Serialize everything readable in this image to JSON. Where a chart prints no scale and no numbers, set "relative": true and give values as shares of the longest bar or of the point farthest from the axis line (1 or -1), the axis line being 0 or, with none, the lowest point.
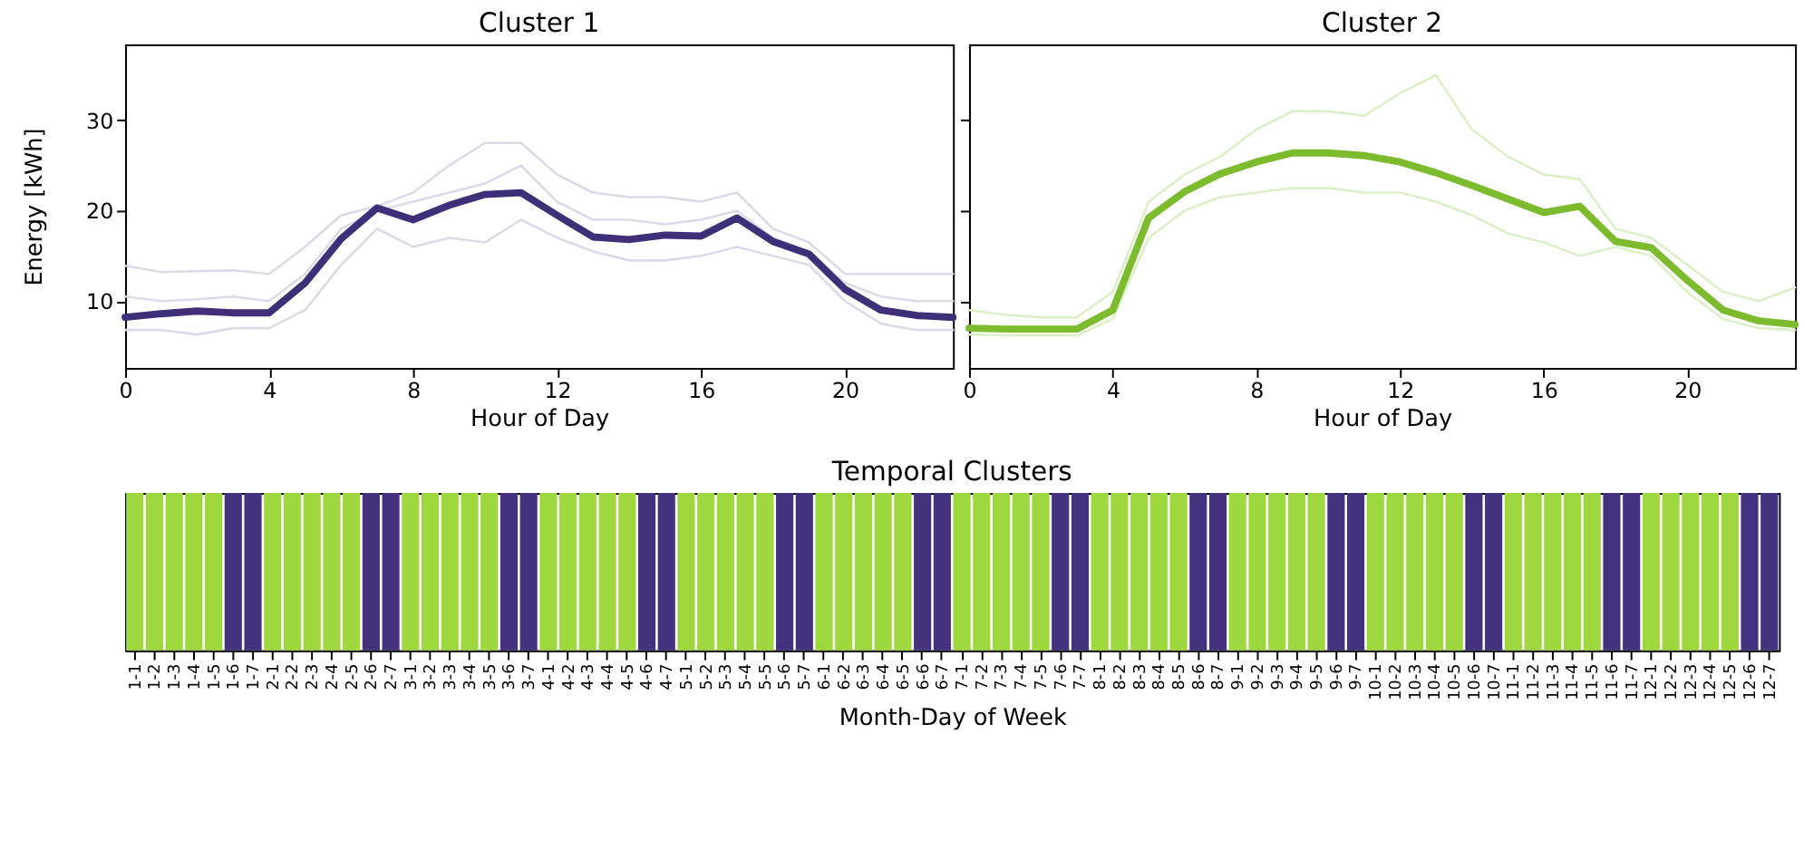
{
  "chart_data": [
    {
      "type": "line",
      "title": "Cluster 1",
      "xlabel": "Hour of Day",
      "ylabel": "Energy [kWh]",
      "x": [
        0,
        1,
        2,
        3,
        4,
        5,
        6,
        7,
        8,
        9,
        10,
        11,
        12,
        13,
        14,
        15,
        16,
        17,
        18,
        19,
        20,
        21,
        22,
        23
      ],
      "xlim": [
        0,
        23
      ],
      "xticks": [
        0,
        4,
        8,
        12,
        16,
        20
      ],
      "ylim": [
        2.6,
        38.4
      ],
      "yticks": [
        10,
        20,
        30
      ],
      "series": [
        {
          "color": "#dcd9e9",
          "values": [
            13.9,
            13.2,
            13.3,
            13.4,
            13.0,
            16,
            19.5,
            20.5,
            22,
            25,
            27.5,
            27.5,
            24,
            22,
            21.5,
            21.5,
            21,
            22,
            18,
            16.5,
            13,
            13,
            13,
            13
          ]
        },
        {
          "color": "#dcd9e9",
          "values": [
            6.8,
            6.8,
            6.3,
            7,
            7,
            9,
            14,
            18,
            16,
            17,
            16.5,
            19,
            17,
            15.5,
            14.5,
            14.5,
            15,
            16,
            15,
            14,
            10,
            7.5,
            6.8,
            6.8
          ]
        },
        {
          "color": "#dcd9e9",
          "values": [
            10.5,
            10,
            10.2,
            10.5,
            10,
            13,
            18,
            20,
            21,
            22,
            23,
            25,
            21,
            19,
            19,
            18.5,
            19,
            20,
            17,
            15.5,
            12,
            10.5,
            10,
            10
          ]
        },
        {
          "color": "#3f2e78",
          "values": [
            8.2,
            8.6,
            8.9,
            8.7,
            8.7,
            12.0,
            16.9,
            20.3,
            19.0,
            20.6,
            21.8,
            22.0,
            19.5,
            17.1,
            16.8,
            17.3,
            17.2,
            19.2,
            16.6,
            15.2,
            11.3,
            9.0,
            8.4,
            8.2
          ]
        }
      ]
    },
    {
      "type": "line",
      "title": "Cluster 2",
      "xlabel": "Hour of Day",
      "x": [
        0,
        1,
        2,
        3,
        4,
        5,
        6,
        7,
        8,
        9,
        10,
        11,
        12,
        13,
        14,
        15,
        16,
        17,
        18,
        19,
        20,
        21,
        22,
        23
      ],
      "xlim": [
        0,
        23
      ],
      "xticks": [
        0,
        4,
        8,
        12,
        16,
        20
      ],
      "ylim": [
        2.6,
        38.4
      ],
      "yticks": [
        10,
        20,
        30
      ],
      "tick_labels": "x",
      "series": [
        {
          "color": "#dcf0c8",
          "values": [
            9,
            8.5,
            8.2,
            8.2,
            11,
            21,
            24,
            26,
            29,
            31,
            31,
            30.5,
            33,
            35,
            29,
            26,
            24,
            23.5,
            18,
            17,
            14,
            11,
            10,
            11.5
          ]
        },
        {
          "color": "#dcf0c8",
          "values": [
            6.3,
            6.2,
            6.2,
            6.2,
            8,
            17,
            20,
            21.5,
            22,
            22.5,
            22.5,
            22,
            22,
            21,
            19.5,
            17.5,
            16.5,
            15,
            16,
            15,
            11,
            8,
            7,
            6.8
          ]
        },
        {
          "color": "#7cba2e",
          "values": [
            7.0,
            6.9,
            6.9,
            6.9,
            9.0,
            19.2,
            22.1,
            24.1,
            25.4,
            26.4,
            26.4,
            26.1,
            25.4,
            24.2,
            22.8,
            21.3,
            19.8,
            20.5,
            16.6,
            15.9,
            12.3,
            9.0,
            7.8,
            7.4
          ]
        }
      ]
    },
    {
      "type": "bar",
      "title": "Temporal Clusters",
      "xlabel": "Month-Day of Week",
      "relative": true,
      "tick_labels": "x",
      "categories": [
        "1-1",
        "1-2",
        "1-3",
        "1-4",
        "1-5",
        "1-6",
        "1-7",
        "2-1",
        "2-2",
        "2-3",
        "2-4",
        "2-5",
        "2-6",
        "2-7",
        "3-1",
        "3-2",
        "3-3",
        "3-4",
        "3-5",
        "3-6",
        "3-7",
        "4-1",
        "4-2",
        "4-3",
        "4-4",
        "4-5",
        "4-6",
        "4-7",
        "5-1",
        "5-2",
        "5-3",
        "5-4",
        "5-5",
        "5-6",
        "5-7",
        "6-1",
        "6-2",
        "6-3",
        "6-4",
        "6-5",
        "6-6",
        "6-7",
        "7-1",
        "7-2",
        "7-3",
        "7-4",
        "7-5",
        "7-6",
        "7-7",
        "8-1",
        "8-2",
        "8-3",
        "8-4",
        "8-5",
        "8-6",
        "8-7",
        "9-1",
        "9-2",
        "9-3",
        "9-4",
        "9-5",
        "9-6",
        "9-7",
        "10-1",
        "10-2",
        "10-3",
        "10-4",
        "10-5",
        "10-6",
        "10-7",
        "11-1",
        "11-2",
        "11-3",
        "11-4",
        "11-5",
        "11-6",
        "11-7",
        "12-1",
        "12-2",
        "12-3",
        "12-4",
        "12-5",
        "12-6",
        "12-7"
      ],
      "values": [
        1,
        1,
        1,
        1,
        1,
        1,
        1,
        1,
        1,
        1,
        1,
        1,
        1,
        1,
        1,
        1,
        1,
        1,
        1,
        1,
        1,
        1,
        1,
        1,
        1,
        1,
        1,
        1,
        1,
        1,
        1,
        1,
        1,
        1,
        1,
        1,
        1,
        1,
        1,
        1,
        1,
        1,
        1,
        1,
        1,
        1,
        1,
        1,
        1,
        1,
        1,
        1,
        1,
        1,
        1,
        1,
        1,
        1,
        1,
        1,
        1,
        1,
        1,
        1,
        1,
        1,
        1,
        1,
        1,
        1,
        1,
        1,
        1,
        1,
        1,
        1,
        1,
        1,
        1,
        1,
        1,
        1,
        1,
        1
      ],
      "colors": [
        "#9fd83e",
        "#9fd83e",
        "#9fd83e",
        "#9fd83e",
        "#9fd83e",
        "#45327e",
        "#45327e",
        "#9fd83e",
        "#9fd83e",
        "#9fd83e",
        "#9fd83e",
        "#9fd83e",
        "#45327e",
        "#45327e",
        "#9fd83e",
        "#9fd83e",
        "#9fd83e",
        "#9fd83e",
        "#9fd83e",
        "#45327e",
        "#45327e",
        "#9fd83e",
        "#9fd83e",
        "#9fd83e",
        "#9fd83e",
        "#9fd83e",
        "#45327e",
        "#45327e",
        "#9fd83e",
        "#9fd83e",
        "#9fd83e",
        "#9fd83e",
        "#9fd83e",
        "#45327e",
        "#45327e",
        "#9fd83e",
        "#9fd83e",
        "#9fd83e",
        "#9fd83e",
        "#9fd83e",
        "#45327e",
        "#45327e",
        "#9fd83e",
        "#9fd83e",
        "#9fd83e",
        "#9fd83e",
        "#9fd83e",
        "#45327e",
        "#45327e",
        "#9fd83e",
        "#9fd83e",
        "#9fd83e",
        "#9fd83e",
        "#9fd83e",
        "#45327e",
        "#45327e",
        "#9fd83e",
        "#9fd83e",
        "#9fd83e",
        "#9fd83e",
        "#9fd83e",
        "#45327e",
        "#45327e",
        "#9fd83e",
        "#9fd83e",
        "#9fd83e",
        "#9fd83e",
        "#9fd83e",
        "#45327e",
        "#45327e",
        "#9fd83e",
        "#9fd83e",
        "#9fd83e",
        "#9fd83e",
        "#9fd83e",
        "#45327e",
        "#45327e",
        "#9fd83e",
        "#9fd83e",
        "#9fd83e",
        "#9fd83e",
        "#9fd83e",
        "#45327e",
        "#45327e"
      ]
    }
  ]
}
